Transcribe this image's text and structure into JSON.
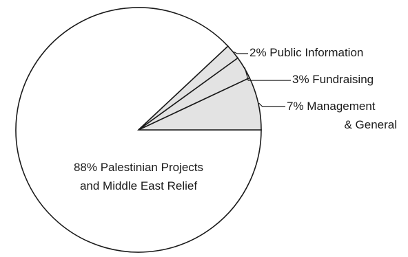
{
  "chart_data": {
    "type": "pie",
    "slices": [
      {
        "label": "Palestinian Projects and Middle East Relief",
        "value": 88,
        "percent_text": "88%"
      },
      {
        "label": "Management & General",
        "value": 7,
        "percent_text": "7%"
      },
      {
        "label": "Fundraising",
        "value": 3,
        "percent_text": "3%"
      },
      {
        "label": "Public Information",
        "value": 2,
        "percent_text": "2%"
      }
    ],
    "labels": {
      "public_information": "2% Public Information",
      "fundraising": "3% Fundraising",
      "management_line1": "7% Management",
      "management_line2": "& General",
      "main_line1": "88% Palestinian Projects",
      "main_line2": "and Middle East Relief"
    },
    "colors": {
      "main_fill": "#ffffff",
      "small_fill": "#e3e3e3",
      "stroke": "#1a1a1a"
    }
  }
}
